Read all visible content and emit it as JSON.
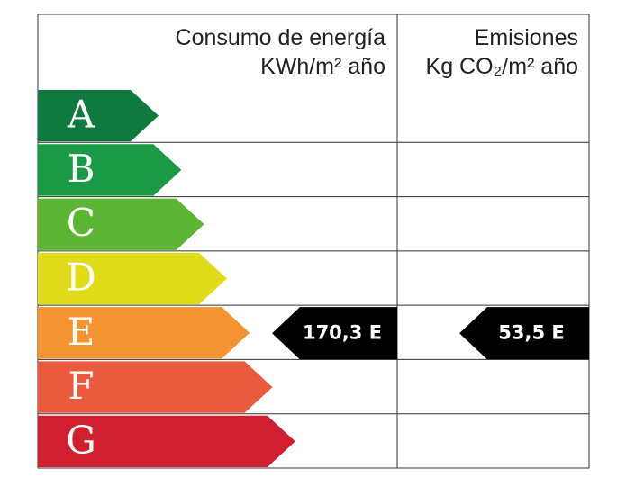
{
  "header": {
    "energy_title": "Consumo de energía",
    "energy_unit": "KWh/m² año",
    "emissions_title": "Emisiones",
    "emissions_unit": "Kg CO₂/m² año"
  },
  "ratings": [
    "A",
    "B",
    "C",
    "D",
    "E",
    "F",
    "G"
  ],
  "energy_rating": {
    "label": "170,3 E"
  },
  "emissions_rating": {
    "label": "53,5 E"
  }
}
